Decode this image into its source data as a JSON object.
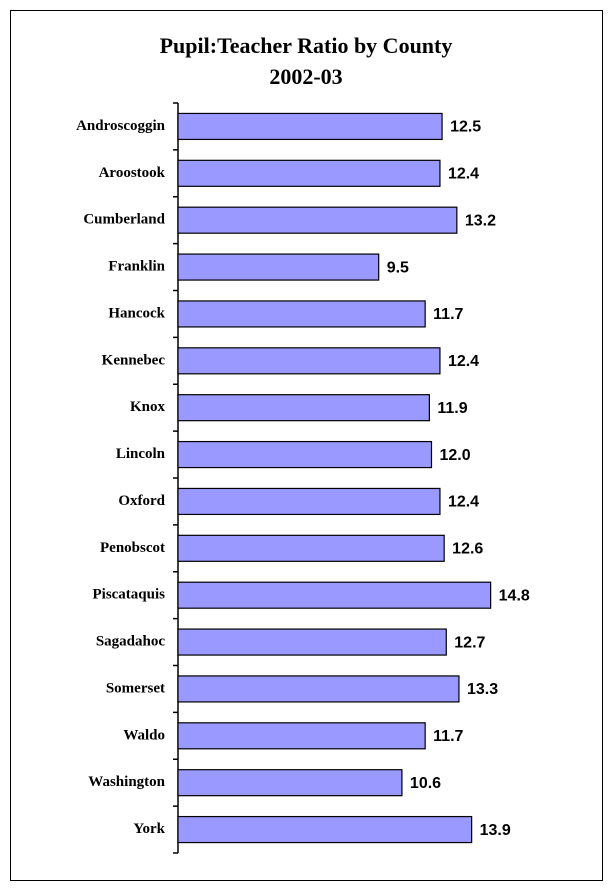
{
  "chart_data": {
    "type": "bar",
    "orientation": "horizontal",
    "title": "Pupil:Teacher Ratio by County",
    "subtitle": "2002-03",
    "categories": [
      "Androscoggin",
      "Aroostook",
      "Cumberland",
      "Franklin",
      "Hancock",
      "Kennebec",
      "Knox",
      "Lincoln",
      "Oxford",
      "Penobscot",
      "Piscataquis",
      "Sagadahoc",
      "Somerset",
      "Waldo",
      "Washington",
      "York"
    ],
    "values": [
      12.5,
      12.4,
      13.2,
      9.5,
      11.7,
      12.4,
      11.9,
      12.0,
      12.4,
      12.6,
      14.8,
      12.7,
      13.3,
      11.7,
      10.6,
      13.9
    ],
    "value_labels": [
      "12.5",
      "12.4",
      "13.2",
      "9.5",
      "11.7",
      "12.4",
      "11.9",
      "12.0",
      "12.4",
      "12.6",
      "14.8",
      "12.7",
      "13.3",
      "11.7",
      "10.6",
      "13.9"
    ],
    "color": "#9999ff",
    "xlim": [
      0,
      16
    ]
  }
}
